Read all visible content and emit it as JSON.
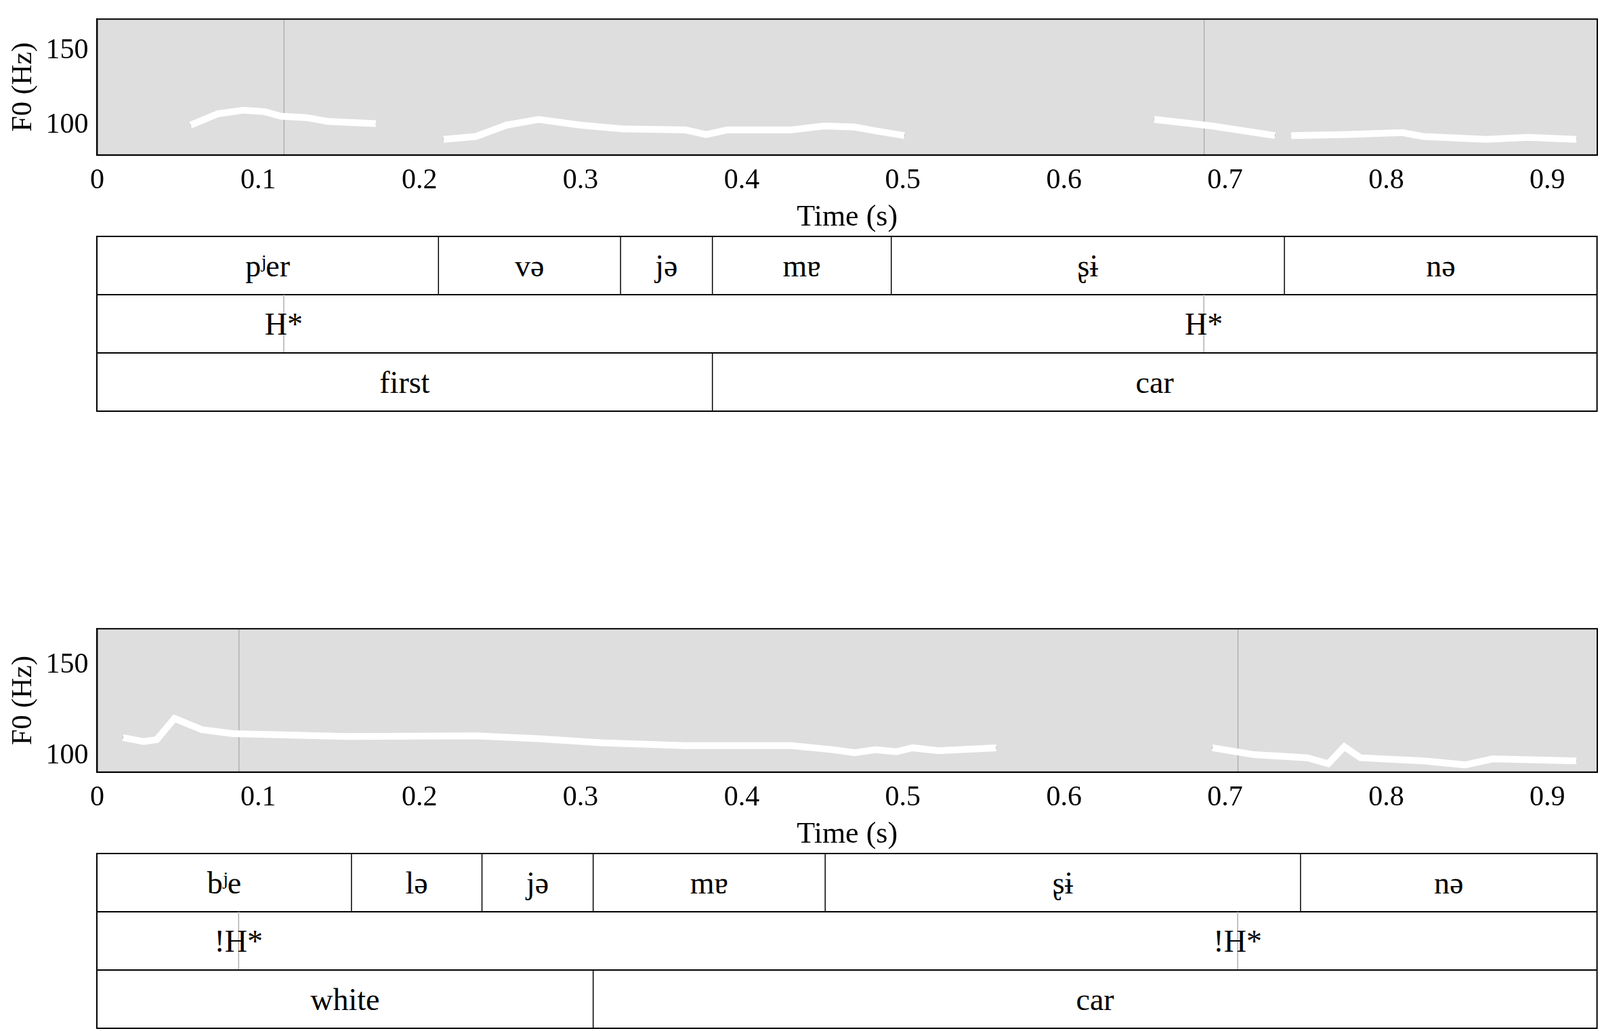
{
  "chart_data": [
    {
      "type": "line",
      "x_label": "Time (s)",
      "y_label": "F0 (Hz)",
      "xlim": [
        0,
        0.931
      ],
      "xticks": [
        0,
        0.1,
        0.2,
        0.3,
        0.4,
        0.5,
        0.6,
        0.7,
        0.8,
        0.9
      ],
      "ylim": [
        80,
        171
      ],
      "yticks": [
        100,
        150
      ],
      "grid": false,
      "color": "#000000",
      "x": [
        0.058,
        0.075,
        0.091,
        0.104,
        0.114,
        0.13,
        0.143,
        0.173,
        0.195,
        0.215,
        0.235,
        0.254,
        0.274,
        0.3,
        0.326,
        0.365,
        0.378,
        0.391,
        0.431,
        0.451,
        0.47,
        0.483,
        0.501,
        0.58,
        0.656,
        0.692,
        0.731,
        0.736,
        0.741,
        0.777,
        0.81,
        0.823,
        0.862,
        0.888,
        0.918
      ],
      "values": [
        100,
        107.6,
        110,
        109,
        106,
        105,
        102.5,
        101,
        null,
        90.5,
        92.4,
        100,
        103.8,
        100,
        97.5,
        96.8,
        93.7,
        96.8,
        96.8,
        99.4,
        98.7,
        96.2,
        93,
        null,
        103.8,
        99.4,
        93,
        null,
        93,
        93.7,
        95,
        92.4,
        90.5,
        91.8,
        90.5
      ],
      "tiers": [
        {
          "kind": "interval",
          "items": [
            {
              "start": 0,
              "end": 0.212,
              "label": "pʲer"
            },
            {
              "start": 0.212,
              "end": 0.325,
              "label": "və"
            },
            {
              "start": 0.325,
              "end": 0.382,
              "label": "jə"
            },
            {
              "start": 0.382,
              "end": 0.493,
              "label": "mɐ"
            },
            {
              "start": 0.493,
              "end": 0.737,
              "label": "ʂɨ"
            },
            {
              "start": 0.737,
              "end": 0.931,
              "label": "nə"
            }
          ]
        },
        {
          "kind": "point",
          "items": [
            {
              "time": 0.116,
              "label": "H*"
            },
            {
              "time": 0.687,
              "label": "H*"
            }
          ]
        },
        {
          "kind": "interval",
          "items": [
            {
              "start": 0,
              "end": 0.382,
              "label": "first"
            },
            {
              "start": 0.382,
              "end": 0.931,
              "label": "car"
            }
          ]
        }
      ]
    },
    {
      "type": "line",
      "x_label": "Time (s)",
      "y_label": "F0 (Hz)",
      "xlim": [
        0,
        0.931
      ],
      "xticks": [
        0,
        0.1,
        0.2,
        0.3,
        0.4,
        0.5,
        0.6,
        0.7,
        0.8,
        0.9
      ],
      "ylim": [
        91,
        170
      ],
      "yticks": [
        100,
        150
      ],
      "grid": false,
      "color": "#000000",
      "x": [
        0.016,
        0.029,
        0.037,
        0.048,
        0.065,
        0.084,
        0.156,
        0.235,
        0.274,
        0.313,
        0.365,
        0.431,
        0.457,
        0.47,
        0.483,
        0.496,
        0.506,
        0.522,
        0.558,
        0.62,
        0.692,
        0.718,
        0.751,
        0.764,
        0.774,
        0.784,
        0.823,
        0.849,
        0.866,
        0.918
      ],
      "values": [
        110,
        107.8,
        108.9,
        120.6,
        114.4,
        112.2,
        110.6,
        111,
        109.4,
        107.2,
        105.6,
        105.6,
        103.3,
        101.7,
        103.3,
        102.2,
        104.4,
        102.8,
        104.4,
        null,
        104.4,
        100.6,
        98.9,
        95.6,
        105,
        98.9,
        97.2,
        95,
        98.3,
        97.2
      ],
      "tiers": [
        {
          "kind": "interval",
          "items": [
            {
              "start": 0,
              "end": 0.158,
              "label": "bʲe"
            },
            {
              "start": 0.158,
              "end": 0.239,
              "label": "lə"
            },
            {
              "start": 0.239,
              "end": 0.308,
              "label": "jə"
            },
            {
              "start": 0.308,
              "end": 0.452,
              "label": "mɐ"
            },
            {
              "start": 0.452,
              "end": 0.747,
              "label": "ʂɨ"
            },
            {
              "start": 0.747,
              "end": 0.931,
              "label": "nə"
            }
          ]
        },
        {
          "kind": "point",
          "items": [
            {
              "time": 0.088,
              "label": "!H*"
            },
            {
              "time": 0.708,
              "label": "!H*"
            }
          ]
        },
        {
          "kind": "interval",
          "items": [
            {
              "start": 0,
              "end": 0.308,
              "label": "white"
            },
            {
              "start": 0.308,
              "end": 0.931,
              "label": "car"
            }
          ]
        }
      ]
    }
  ]
}
